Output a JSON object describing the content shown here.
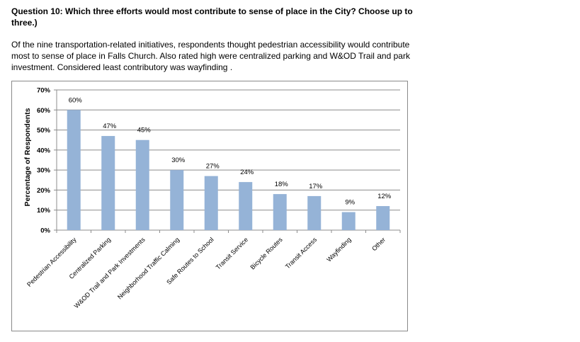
{
  "header": {
    "question": "Question 10: Which three efforts would most contribute to sense of place in the City? Choose up to three.)",
    "description": "Of the nine transportation-related initiatives, respondents thought pedestrian accessibility would contribute most to sense of place in Falls Church.  Also rated high were centralized parking and W&OD Trail and park investment.  Considered least contributory was wayfinding ."
  },
  "chart_data": {
    "type": "bar",
    "categories": [
      "Pedestrian Accessibility",
      "Centralized Parking",
      "W&OD Trail and Park Investments",
      "Neighborhood Traffic Calming",
      "Safe Routes to School",
      "Transit Service",
      "Bicycle Routes",
      "Transit Access",
      "Wayfinding",
      "Other"
    ],
    "values": [
      60,
      47,
      45,
      30,
      27,
      24,
      18,
      17,
      9,
      12
    ],
    "data_labels": [
      "60%",
      "47%",
      "45%",
      "30%",
      "27%",
      "24%",
      "18%",
      "17%",
      "9%",
      "12%"
    ],
    "yticks": [
      0,
      10,
      20,
      30,
      40,
      50,
      60,
      70
    ],
    "ytick_labels": [
      "0%",
      "10%",
      "20%",
      "30%",
      "40%",
      "50%",
      "60%",
      "70%"
    ],
    "ylim": [
      0,
      70
    ],
    "ylabel": "Percentage of Respondents",
    "xlabel": "",
    "grid": true,
    "bar_color": "#95b3d7",
    "grid_color": "#8c8c8c"
  }
}
